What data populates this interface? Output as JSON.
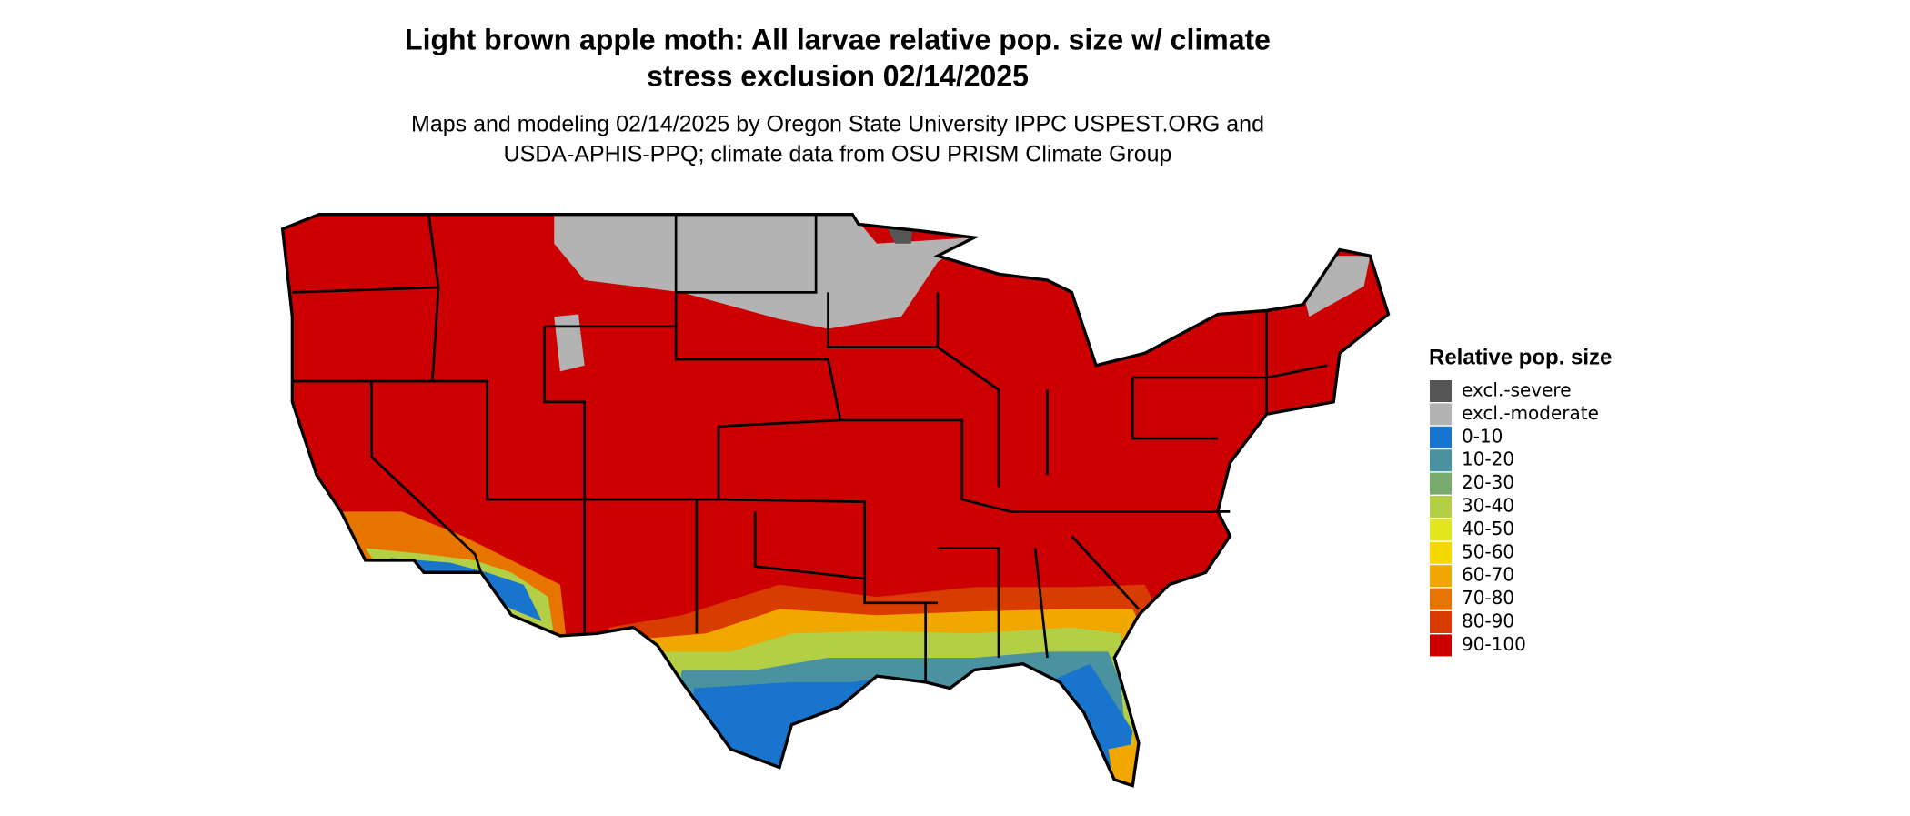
{
  "header": {
    "title_lines": [
      "Light brown apple moth: All larvae relative pop. size w/ climate",
      "stress exclusion 02/14/2025"
    ],
    "subtitle_lines": [
      "Maps and modeling 02/14/2025 by Oregon State University IPPC USPEST.ORG and",
      "USDA-APHIS-PPQ; climate data from OSU PRISM Climate Group"
    ]
  },
  "legend": {
    "title": "Relative pop. size",
    "items": [
      {
        "label": "excl.-severe",
        "color": "#555555"
      },
      {
        "label": "excl.-moderate",
        "color": "#b3b3b3"
      },
      {
        "label": "0-10",
        "color": "#1874cd"
      },
      {
        "label": "10-20",
        "color": "#4a92a0"
      },
      {
        "label": "20-30",
        "color": "#7aab6e"
      },
      {
        "label": "30-40",
        "color": "#b2cf46"
      },
      {
        "label": "40-50",
        "color": "#e2e61a"
      },
      {
        "label": "50-60",
        "color": "#f5d800"
      },
      {
        "label": "60-70",
        "color": "#f0a800"
      },
      {
        "label": "70-80",
        "color": "#e87400"
      },
      {
        "label": "80-90",
        "color": "#d83c00"
      },
      {
        "label": "90-100",
        "color": "#cc0000"
      }
    ]
  }
}
